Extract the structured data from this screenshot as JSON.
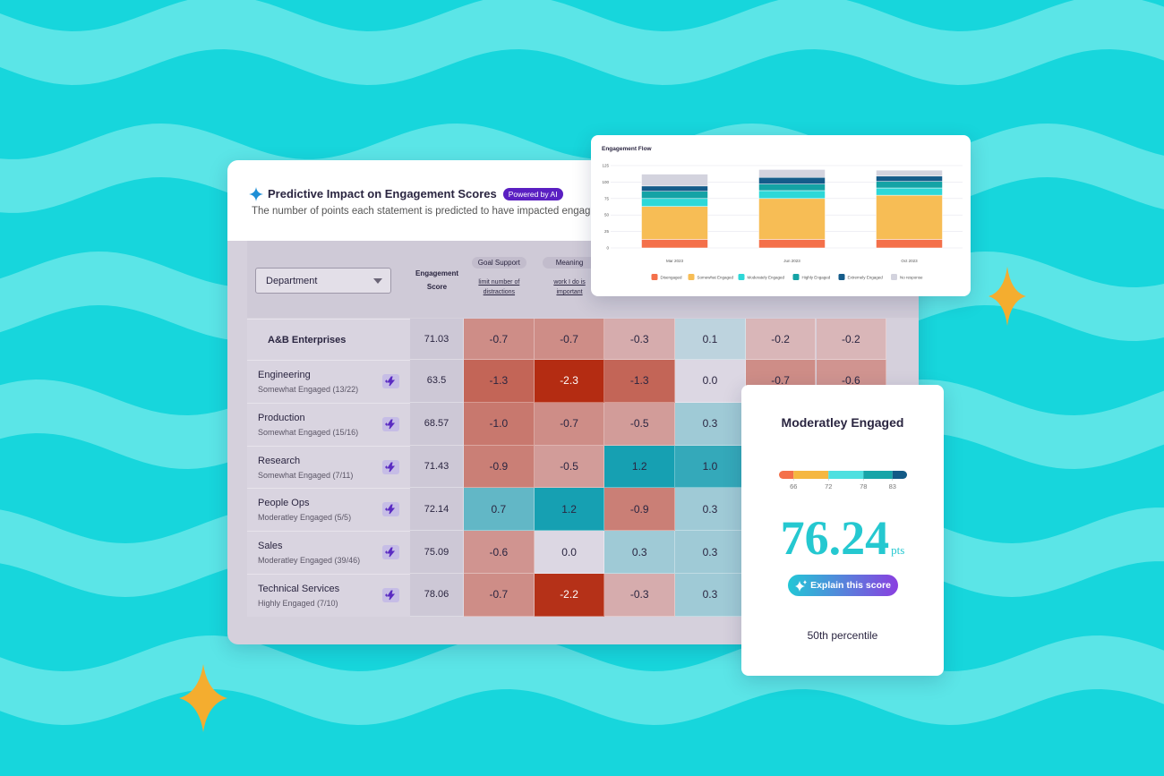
{
  "header": {
    "title": "Predictive Impact on Engagement Scores",
    "badge": "Powered by AI",
    "subtitle": "The number of points each statement is predicted to have impacted engag"
  },
  "table": {
    "filter": "Department",
    "score_header": "Engagement Score",
    "columns": [
      {
        "group": "Goal Support",
        "statement": "limit number of distractions"
      },
      {
        "group": "Meaning",
        "statement": "work I do is important"
      }
    ],
    "rows": [
      {
        "name": "A&B Enterprises",
        "score": "71.03",
        "cells": [
          "-0.7",
          "-0.7",
          "-0.3",
          "0.1",
          "-0.2",
          "-0.2"
        ]
      },
      {
        "name": "Engineering",
        "status": "Somewhat Engaged (13/22)",
        "score": "63.5",
        "cells": [
          "-1.3",
          "-2.3",
          "-1.3",
          "0.0",
          "-0.7",
          "-0.6"
        ]
      },
      {
        "name": "Production",
        "status": "Somewhat Engaged (15/16)",
        "score": "68.57",
        "cells": [
          "-1.0",
          "-0.7",
          "-0.5",
          "0.3"
        ]
      },
      {
        "name": "Research",
        "status": "Somewhat Engaged (7/11)",
        "score": "71.43",
        "cells": [
          "-0.9",
          "-0.5",
          "1.2",
          "1.0"
        ]
      },
      {
        "name": "People Ops",
        "status": "Moderatley Engaged (5/5)",
        "score": "72.14",
        "cells": [
          "0.7",
          "1.2",
          "-0.9",
          "0.3"
        ]
      },
      {
        "name": "Sales",
        "status": "Moderatley Engaged (39/46)",
        "score": "75.09",
        "cells": [
          "-0.6",
          "0.0",
          "0.3",
          "0.3"
        ]
      },
      {
        "name": "Technical Services",
        "status": "Highly Engaged (7/10)",
        "score": "78.06",
        "cells": [
          "-0.7",
          "-2.2",
          "-0.3",
          "0.3"
        ]
      }
    ]
  },
  "chart_data": {
    "type": "bar",
    "stacked": true,
    "title": "Engagement Flow",
    "categories": [
      "Mar 2023",
      "Jun 2023",
      "Oct 2023"
    ],
    "series": [
      {
        "name": "Disengaged",
        "color": "#f4704a",
        "values": [
          13,
          13,
          13
        ]
      },
      {
        "name": "Somewhat Engaged",
        "color": "#f7bd55",
        "values": [
          50,
          62,
          67
        ]
      },
      {
        "name": "Moderately Engaged",
        "color": "#2dd8d8",
        "values": [
          12,
          12,
          11
        ]
      },
      {
        "name": "Highly Engaged",
        "color": "#14a3a5",
        "values": [
          11,
          10,
          10
        ]
      },
      {
        "name": "Extremely Engaged",
        "color": "#155c8a",
        "values": [
          8,
          10,
          8
        ]
      },
      {
        "name": "No response",
        "color": "#d3d3de",
        "values": [
          18,
          12,
          9
        ]
      }
    ],
    "ylim": [
      0,
      125
    ],
    "yticks": [
      0,
      25,
      50,
      75,
      100,
      125
    ],
    "grid": true,
    "legend": "bottom"
  },
  "score_card": {
    "title": "Moderatley Engaged",
    "gauge": {
      "lim": [
        63.5,
        85.5
      ],
      "ticks": [
        66,
        72,
        78,
        83
      ],
      "colors": [
        "#f4704a",
        "#f5b740",
        "#4ee0e0",
        "#17a5a8",
        "#135a86"
      ]
    },
    "value": "76.24",
    "unit": "pts",
    "button": "Explain this score",
    "percentile": "50th percentile"
  }
}
